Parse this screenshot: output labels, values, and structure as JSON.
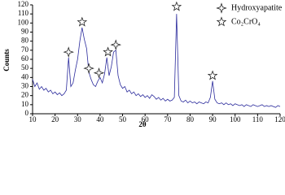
{
  "chart_data": {
    "type": "line",
    "x_label": "2θ",
    "y_label": "Counts",
    "xlim": [
      10,
      120
    ],
    "ylim": [
      0,
      120
    ],
    "xticks": [
      10,
      20,
      30,
      40,
      50,
      60,
      70,
      80,
      90,
      100,
      110,
      120
    ],
    "yticks": [
      0,
      10,
      20,
      30,
      40,
      50,
      60,
      70,
      80,
      90,
      100,
      110,
      120
    ],
    "legend": "top-right",
    "pattern": {
      "color": "#2b2b9c",
      "x": [
        10,
        11,
        12,
        13,
        14,
        15,
        16,
        17,
        18,
        19,
        20,
        21,
        22,
        23,
        24,
        25,
        26,
        27,
        28,
        29,
        30,
        31,
        32,
        33,
        34,
        35,
        36,
        37,
        38,
        39,
        40,
        41,
        42,
        43,
        44,
        45,
        46,
        47,
        48,
        49,
        50,
        51,
        52,
        53,
        54,
        55,
        56,
        57,
        58,
        59,
        60,
        61,
        62,
        63,
        64,
        65,
        66,
        67,
        68,
        69,
        70,
        71,
        72,
        73,
        74,
        75,
        76,
        77,
        78,
        79,
        80,
        81,
        82,
        83,
        84,
        85,
        86,
        87,
        88,
        89,
        90,
        91,
        92,
        93,
        94,
        95,
        96,
        97,
        98,
        99,
        100,
        101,
        102,
        103,
        104,
        105,
        106,
        107,
        108,
        109,
        110,
        111,
        112,
        113,
        114,
        115,
        116,
        117,
        118,
        119,
        120
      ],
      "values": [
        38,
        30,
        34,
        27,
        30,
        26,
        28,
        24,
        26,
        22,
        24,
        21,
        23,
        20,
        22,
        26,
        62,
        30,
        34,
        48,
        60,
        80,
        95,
        82,
        72,
        46,
        38,
        32,
        30,
        36,
        40,
        34,
        44,
        62,
        42,
        52,
        68,
        70,
        42,
        32,
        28,
        30,
        24,
        26,
        22,
        24,
        20,
        22,
        19,
        21,
        18,
        20,
        17,
        21,
        19,
        16,
        18,
        15,
        17,
        14,
        16,
        14,
        15,
        18,
        110,
        20,
        14,
        13,
        15,
        12,
        14,
        12,
        13,
        11,
        13,
        12,
        11,
        13,
        12,
        18,
        36,
        16,
        12,
        11,
        12,
        10,
        12,
        10,
        11,
        9,
        11,
        10,
        9,
        10,
        8,
        10,
        9,
        8,
        10,
        9,
        8,
        9,
        10,
        8,
        9,
        8,
        9,
        8,
        7,
        9,
        8
      ]
    },
    "series": [
      {
        "name": "Hydroxyapatite",
        "marker": "star4",
        "color": "#ffffff",
        "x": [
          26,
          35,
          39.5,
          47
        ],
        "values": [
          68,
          50,
          45,
          76
        ]
      },
      {
        "name": "Co₂CrO₄",
        "marker": "star5",
        "color": "#ffffff",
        "x": [
          32,
          43.5,
          74,
          90
        ],
        "values": [
          101,
          68,
          118,
          42
        ]
      }
    ]
  }
}
